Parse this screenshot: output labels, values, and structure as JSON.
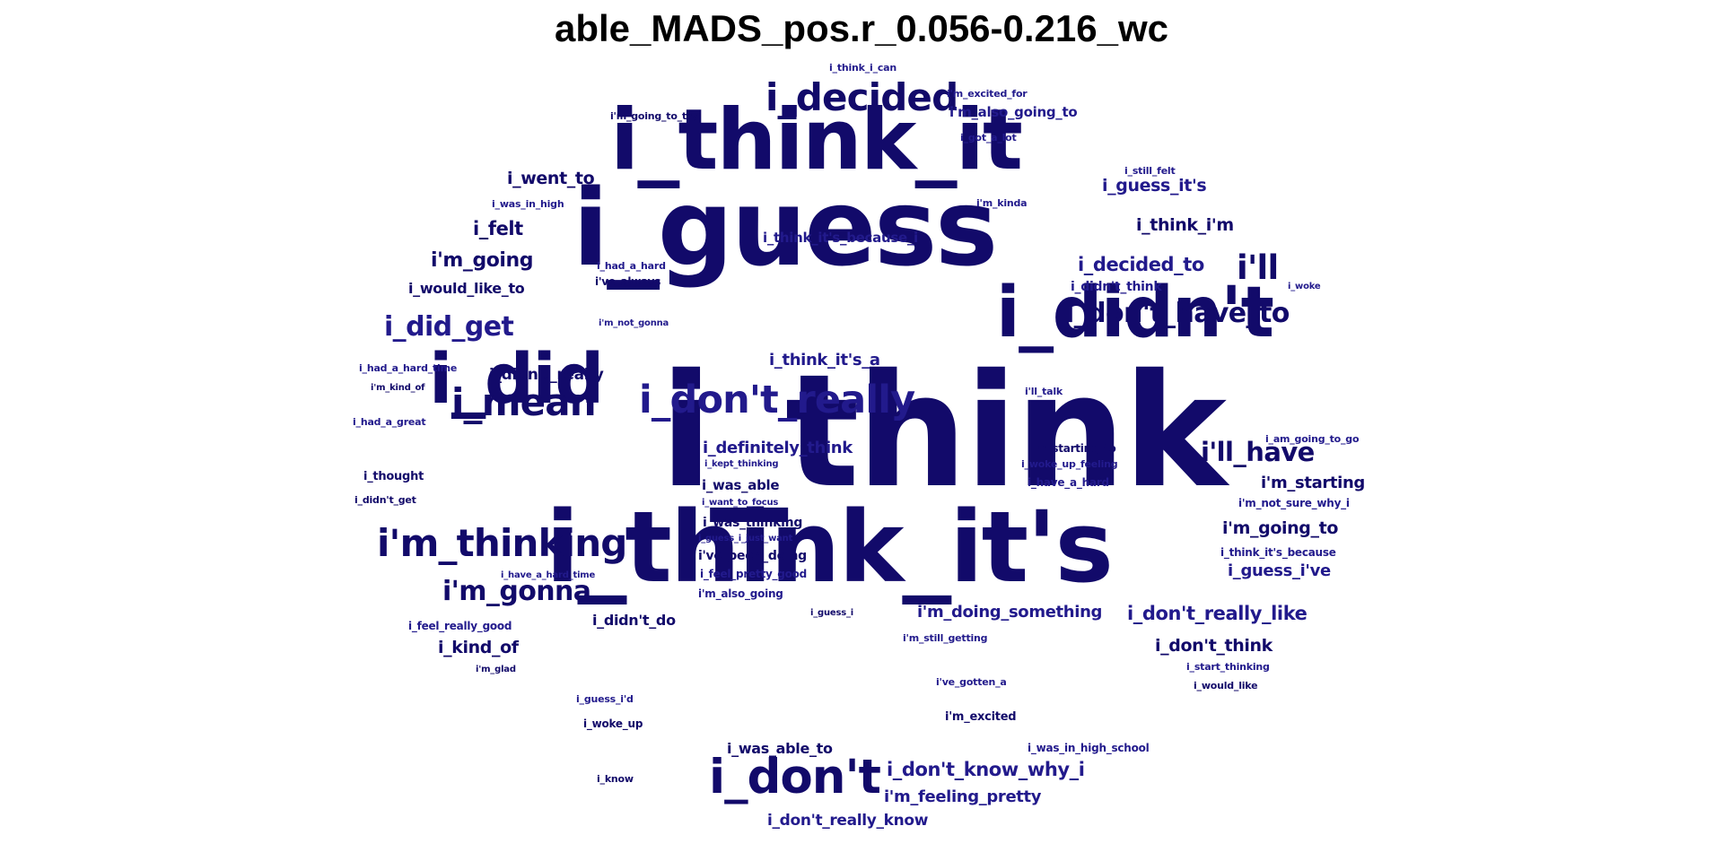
{
  "title": "able_MADS_pos.r_0.056-0.216_wc",
  "colors": {
    "background": "#ffffff",
    "title": "#000000",
    "dark": "#120a6a",
    "mid": "#221a8c",
    "light": "#3a32c0"
  },
  "words": [
    {
      "text": "i_think"
    },
    {
      "text": "i_guess"
    },
    {
      "text": "i_think_it's"
    },
    {
      "text": "i_think_it"
    },
    {
      "text": "i_didn't"
    },
    {
      "text": "i_did"
    },
    {
      "text": "i_don't"
    },
    {
      "text": "i_don't_really"
    },
    {
      "text": "i_decided"
    },
    {
      "text": "i'm_thinking"
    },
    {
      "text": "i_mean"
    },
    {
      "text": "i'm_gonna"
    },
    {
      "text": "i_did_get"
    },
    {
      "text": "i'll"
    },
    {
      "text": "i_don't_have_to"
    },
    {
      "text": "i'll_have"
    },
    {
      "text": "i_don't_really_like"
    },
    {
      "text": "i_don't_know_why_i"
    },
    {
      "text": "i_guess_it's"
    },
    {
      "text": "i_decided_to"
    },
    {
      "text": "i'm_going"
    },
    {
      "text": "i_think_i'm"
    },
    {
      "text": "i_went_to"
    },
    {
      "text": "i_felt"
    },
    {
      "text": "i_definitely_think"
    },
    {
      "text": "i'm_going_to"
    },
    {
      "text": "i'm_starting"
    },
    {
      "text": "i_don't_think"
    },
    {
      "text": "i'm_doing_something"
    },
    {
      "text": "i_think_it's_a"
    },
    {
      "text": "i'm_feeling_pretty"
    },
    {
      "text": "i_guess_i've"
    },
    {
      "text": "i_didn't_really"
    },
    {
      "text": "i_kind_of"
    },
    {
      "text": "i_don't_really_know"
    },
    {
      "text": "i_was_able_to"
    },
    {
      "text": "i_didn't_do"
    },
    {
      "text": "i_would_like_to"
    },
    {
      "text": "i'm_also_going_to"
    },
    {
      "text": "i_think_it's_because_i"
    },
    {
      "text": "i_was_able"
    },
    {
      "text": "i_was_thinking"
    },
    {
      "text": "i've_been_doing"
    },
    {
      "text": "i_didn't_think"
    },
    {
      "text": "i_thought"
    },
    {
      "text": "i'm_excited"
    },
    {
      "text": "i_was_in_high_school"
    },
    {
      "text": "i'm_starting_to"
    },
    {
      "text": "i_have_a_hard"
    },
    {
      "text": "i_think_it's_because"
    },
    {
      "text": "i'm_not_sure_why_i"
    },
    {
      "text": "i_feel_really_good"
    },
    {
      "text": "i_feel_pretty_good"
    },
    {
      "text": "i'm_also_going"
    },
    {
      "text": "i_woke_up"
    },
    {
      "text": "i_would_like"
    },
    {
      "text": "i_know"
    },
    {
      "text": "i_still_felt"
    },
    {
      "text": "i'm_kinda"
    },
    {
      "text": "i_got_a_lot"
    },
    {
      "text": "i'm_excited_for"
    },
    {
      "text": "i_think_i_can"
    },
    {
      "text": "i'm_going_to_try"
    },
    {
      "text": "i_was_in_high"
    },
    {
      "text": "i_had_a_hard"
    },
    {
      "text": "i've_always"
    },
    {
      "text": "i'm_not_gonna"
    },
    {
      "text": "i_woke"
    },
    {
      "text": "i_had_a_hard_time"
    },
    {
      "text": "i'm_kind_of"
    },
    {
      "text": "i_had_a_great"
    },
    {
      "text": "i'll_talk"
    },
    {
      "text": "i_am_going_to_go"
    },
    {
      "text": "i_woke_up_feeling"
    },
    {
      "text": "i_kept_thinking"
    },
    {
      "text": "i_didn't_get"
    },
    {
      "text": "i_want_to_focus"
    },
    {
      "text": "i_guess_i_just_want"
    },
    {
      "text": "i_have_a_hard_time"
    },
    {
      "text": "i_guess_i"
    },
    {
      "text": "i'm_still_getting"
    },
    {
      "text": "i_start_thinking"
    },
    {
      "text": "i'm_glad"
    },
    {
      "text": "i've_gotten_a"
    },
    {
      "text": "i_guess_i'd"
    }
  ]
}
